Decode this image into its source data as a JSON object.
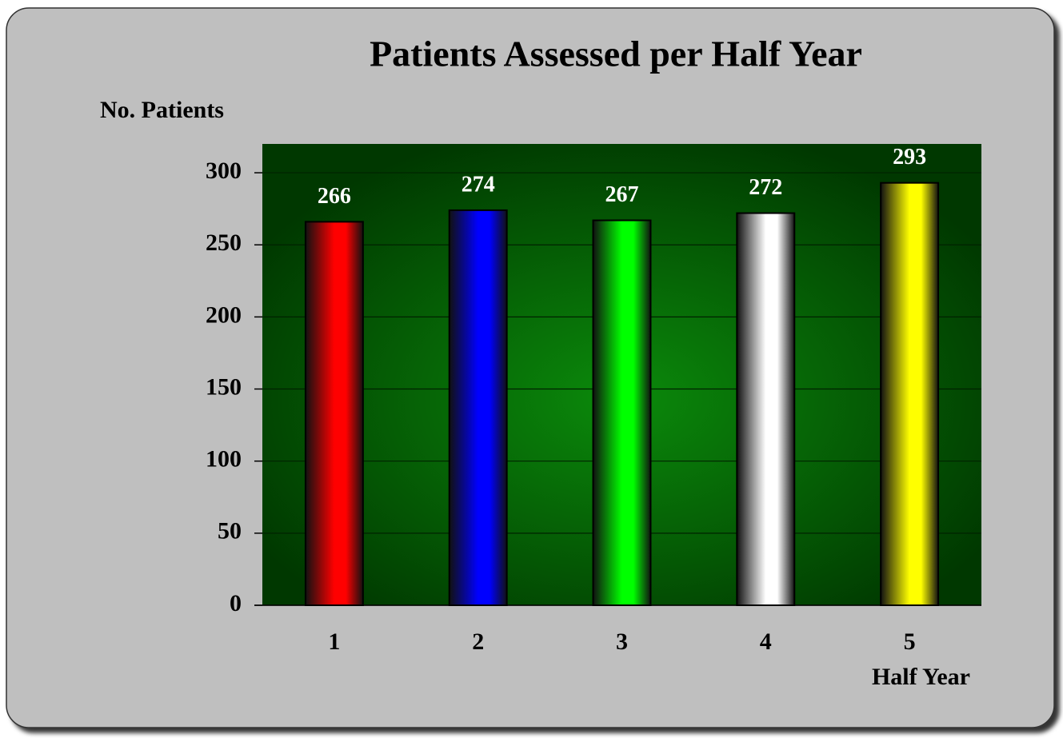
{
  "chart_data": {
    "type": "bar",
    "title": "Patients Assessed per Half Year",
    "y_label": "No. Patients",
    "x_label": "Half Year",
    "categories": [
      "1",
      "2",
      "3",
      "4",
      "5"
    ],
    "values": [
      266,
      274,
      267,
      272,
      293
    ],
    "colors": [
      "#ff0000",
      "#0000ff",
      "#00ff00",
      "#ffffff",
      "#ffff00"
    ],
    "ylim": [
      0,
      320
    ],
    "yticks": [
      0,
      50,
      100,
      150,
      200,
      250,
      300
    ],
    "grid": true
  }
}
